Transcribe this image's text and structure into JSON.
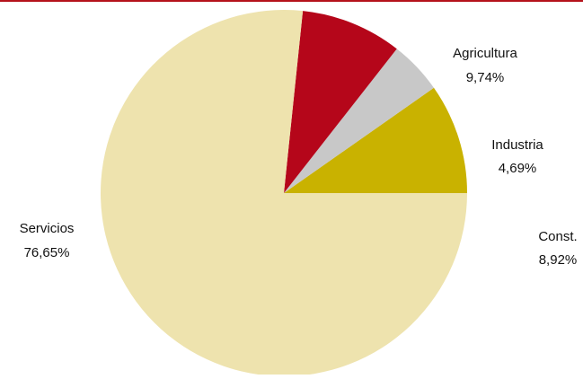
{
  "colors": {
    "rule": "#b5121b",
    "background": "#ffffff",
    "label_text": "#111111"
  },
  "chart_data": {
    "type": "pie",
    "title": "",
    "start_angle_deg": 0,
    "direction": "counterclockwise",
    "slices": [
      {
        "label": "Agricultura",
        "value": 9.74,
        "display": "9,74%",
        "color": "#c9b200"
      },
      {
        "label": "Industria",
        "value": 4.69,
        "display": "4,69%",
        "color": "#c8c8c8"
      },
      {
        "label": "Const.",
        "value": 8.92,
        "display": "8,92%",
        "color": "#b5061a"
      },
      {
        "label": "Servicios",
        "value": 76.65,
        "display": "76,65%",
        "color": "#eee3ae"
      }
    ]
  }
}
